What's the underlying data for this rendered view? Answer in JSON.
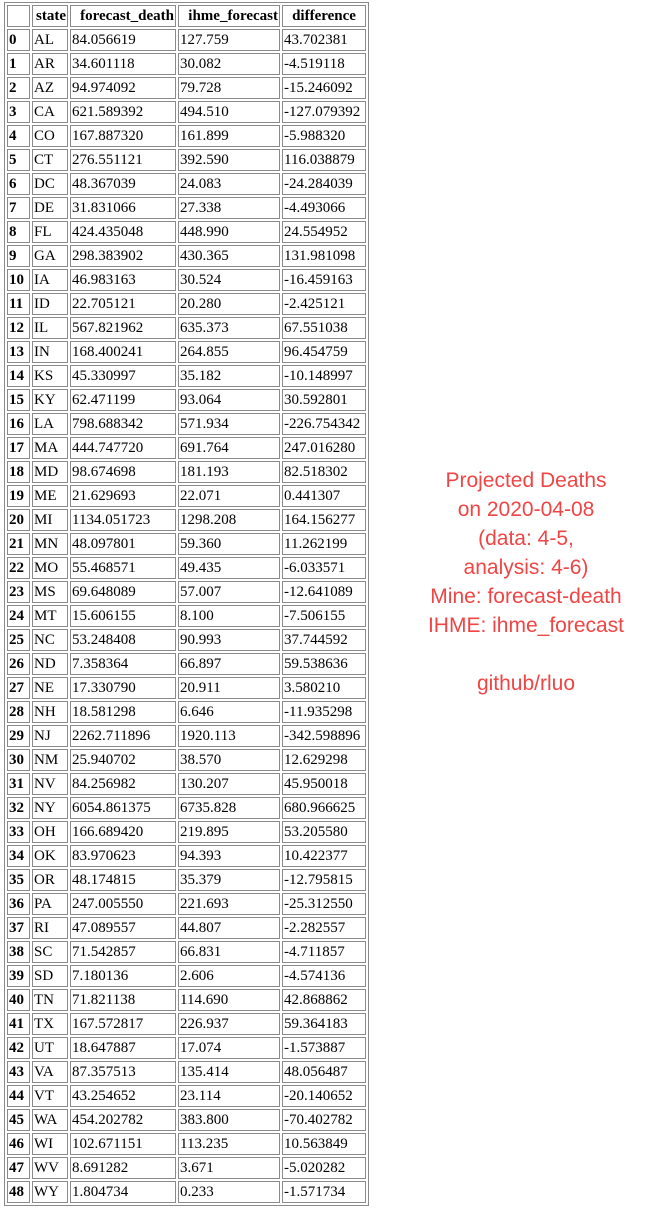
{
  "table": {
    "columns": [
      "state",
      "forecast_death",
      "ihme_forecast",
      "difference"
    ],
    "rows": [
      {
        "index": "0",
        "state": "AL",
        "forecast_death": "84.056619",
        "ihme_forecast": "127.759",
        "difference": "43.702381"
      },
      {
        "index": "1",
        "state": "AR",
        "forecast_death": "34.601118",
        "ihme_forecast": "30.082",
        "difference": "-4.519118"
      },
      {
        "index": "2",
        "state": "AZ",
        "forecast_death": "94.974092",
        "ihme_forecast": "79.728",
        "difference": "-15.246092"
      },
      {
        "index": "3",
        "state": "CA",
        "forecast_death": "621.589392",
        "ihme_forecast": "494.510",
        "difference": "-127.079392"
      },
      {
        "index": "4",
        "state": "CO",
        "forecast_death": "167.887320",
        "ihme_forecast": "161.899",
        "difference": "-5.988320"
      },
      {
        "index": "5",
        "state": "CT",
        "forecast_death": "276.551121",
        "ihme_forecast": "392.590",
        "difference": "116.038879"
      },
      {
        "index": "6",
        "state": "DC",
        "forecast_death": "48.367039",
        "ihme_forecast": "24.083",
        "difference": "-24.284039"
      },
      {
        "index": "7",
        "state": "DE",
        "forecast_death": "31.831066",
        "ihme_forecast": "27.338",
        "difference": "-4.493066"
      },
      {
        "index": "8",
        "state": "FL",
        "forecast_death": "424.435048",
        "ihme_forecast": "448.990",
        "difference": "24.554952"
      },
      {
        "index": "9",
        "state": "GA",
        "forecast_death": "298.383902",
        "ihme_forecast": "430.365",
        "difference": "131.981098"
      },
      {
        "index": "10",
        "state": "IA",
        "forecast_death": "46.983163",
        "ihme_forecast": "30.524",
        "difference": "-16.459163"
      },
      {
        "index": "11",
        "state": "ID",
        "forecast_death": "22.705121",
        "ihme_forecast": "20.280",
        "difference": "-2.425121"
      },
      {
        "index": "12",
        "state": "IL",
        "forecast_death": "567.821962",
        "ihme_forecast": "635.373",
        "difference": "67.551038"
      },
      {
        "index": "13",
        "state": "IN",
        "forecast_death": "168.400241",
        "ihme_forecast": "264.855",
        "difference": "96.454759"
      },
      {
        "index": "14",
        "state": "KS",
        "forecast_death": "45.330997",
        "ihme_forecast": "35.182",
        "difference": "-10.148997"
      },
      {
        "index": "15",
        "state": "KY",
        "forecast_death": "62.471199",
        "ihme_forecast": "93.064",
        "difference": "30.592801"
      },
      {
        "index": "16",
        "state": "LA",
        "forecast_death": "798.688342",
        "ihme_forecast": "571.934",
        "difference": "-226.754342"
      },
      {
        "index": "17",
        "state": "MA",
        "forecast_death": "444.747720",
        "ihme_forecast": "691.764",
        "difference": "247.016280"
      },
      {
        "index": "18",
        "state": "MD",
        "forecast_death": "98.674698",
        "ihme_forecast": "181.193",
        "difference": "82.518302"
      },
      {
        "index": "19",
        "state": "ME",
        "forecast_death": "21.629693",
        "ihme_forecast": "22.071",
        "difference": "0.441307"
      },
      {
        "index": "20",
        "state": "MI",
        "forecast_death": "1134.051723",
        "ihme_forecast": "1298.208",
        "difference": "164.156277"
      },
      {
        "index": "21",
        "state": "MN",
        "forecast_death": "48.097801",
        "ihme_forecast": "59.360",
        "difference": "11.262199"
      },
      {
        "index": "22",
        "state": "MO",
        "forecast_death": "55.468571",
        "ihme_forecast": "49.435",
        "difference": "-6.033571"
      },
      {
        "index": "23",
        "state": "MS",
        "forecast_death": "69.648089",
        "ihme_forecast": "57.007",
        "difference": "-12.641089"
      },
      {
        "index": "24",
        "state": "MT",
        "forecast_death": "15.606155",
        "ihme_forecast": "8.100",
        "difference": "-7.506155"
      },
      {
        "index": "25",
        "state": "NC",
        "forecast_death": "53.248408",
        "ihme_forecast": "90.993",
        "difference": "37.744592"
      },
      {
        "index": "26",
        "state": "ND",
        "forecast_death": "7.358364",
        "ihme_forecast": "66.897",
        "difference": "59.538636"
      },
      {
        "index": "27",
        "state": "NE",
        "forecast_death": "17.330790",
        "ihme_forecast": "20.911",
        "difference": "3.580210"
      },
      {
        "index": "28",
        "state": "NH",
        "forecast_death": "18.581298",
        "ihme_forecast": "6.646",
        "difference": "-11.935298"
      },
      {
        "index": "29",
        "state": "NJ",
        "forecast_death": "2262.711896",
        "ihme_forecast": "1920.113",
        "difference": "-342.598896"
      },
      {
        "index": "30",
        "state": "NM",
        "forecast_death": "25.940702",
        "ihme_forecast": "38.570",
        "difference": "12.629298"
      },
      {
        "index": "31",
        "state": "NV",
        "forecast_death": "84.256982",
        "ihme_forecast": "130.207",
        "difference": "45.950018"
      },
      {
        "index": "32",
        "state": "NY",
        "forecast_death": "6054.861375",
        "ihme_forecast": "6735.828",
        "difference": "680.966625"
      },
      {
        "index": "33",
        "state": "OH",
        "forecast_death": "166.689420",
        "ihme_forecast": "219.895",
        "difference": "53.205580"
      },
      {
        "index": "34",
        "state": "OK",
        "forecast_death": "83.970623",
        "ihme_forecast": "94.393",
        "difference": "10.422377"
      },
      {
        "index": "35",
        "state": "OR",
        "forecast_death": "48.174815",
        "ihme_forecast": "35.379",
        "difference": "-12.795815"
      },
      {
        "index": "36",
        "state": "PA",
        "forecast_death": "247.005550",
        "ihme_forecast": "221.693",
        "difference": "-25.312550"
      },
      {
        "index": "37",
        "state": "RI",
        "forecast_death": "47.089557",
        "ihme_forecast": "44.807",
        "difference": "-2.282557"
      },
      {
        "index": "38",
        "state": "SC",
        "forecast_death": "71.542857",
        "ihme_forecast": "66.831",
        "difference": "-4.711857"
      },
      {
        "index": "39",
        "state": "SD",
        "forecast_death": "7.180136",
        "ihme_forecast": "2.606",
        "difference": "-4.574136"
      },
      {
        "index": "40",
        "state": "TN",
        "forecast_death": "71.821138",
        "ihme_forecast": "114.690",
        "difference": "42.868862"
      },
      {
        "index": "41",
        "state": "TX",
        "forecast_death": "167.572817",
        "ihme_forecast": "226.937",
        "difference": "59.364183"
      },
      {
        "index": "42",
        "state": "UT",
        "forecast_death": "18.647887",
        "ihme_forecast": "17.074",
        "difference": "-1.573887"
      },
      {
        "index": "43",
        "state": "VA",
        "forecast_death": "87.357513",
        "ihme_forecast": "135.414",
        "difference": "48.056487"
      },
      {
        "index": "44",
        "state": "VT",
        "forecast_death": "43.254652",
        "ihme_forecast": "23.114",
        "difference": "-20.140652"
      },
      {
        "index": "45",
        "state": "WA",
        "forecast_death": "454.202782",
        "ihme_forecast": "383.800",
        "difference": "-70.402782"
      },
      {
        "index": "46",
        "state": "WI",
        "forecast_death": "102.671151",
        "ihme_forecast": "113.235",
        "difference": "10.563849"
      },
      {
        "index": "47",
        "state": "WV",
        "forecast_death": "8.691282",
        "ihme_forecast": "3.671",
        "difference": "-5.020282"
      },
      {
        "index": "48",
        "state": "WY",
        "forecast_death": "1.804734",
        "ihme_forecast": "0.233",
        "difference": "-1.571734"
      }
    ]
  },
  "annotation": {
    "lines": [
      "Projected Deaths",
      "on 2020-04-08",
      "(data: 4-5,",
      "analysis: 4-6)",
      "Mine: forecast-death",
      "IHME: ihme_forecast",
      "",
      "github/rluo"
    ],
    "color": "#ef4545"
  }
}
